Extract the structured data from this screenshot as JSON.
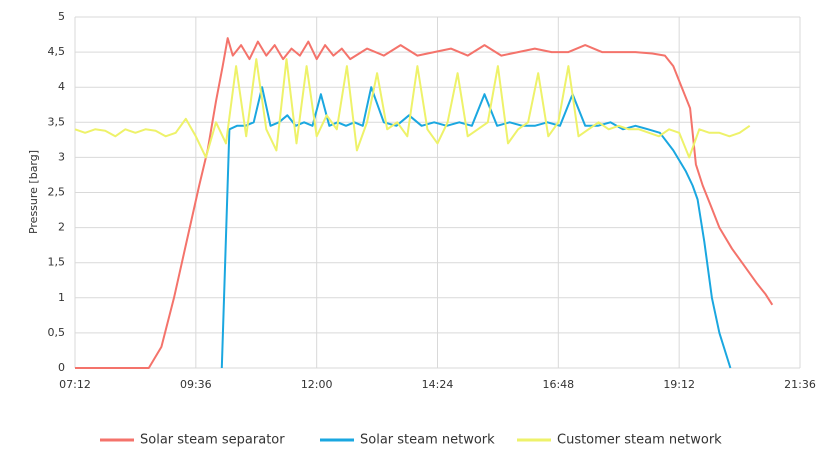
{
  "chart_data": {
    "type": "line",
    "y_label": "Pressure [barg]",
    "xlim": [
      432,
      1296
    ],
    "xticks": [
      {
        "value": 432,
        "label": "07:12"
      },
      {
        "value": 576,
        "label": "09:36"
      },
      {
        "value": 720,
        "label": "12:00"
      },
      {
        "value": 864,
        "label": "14:24"
      },
      {
        "value": 1008,
        "label": "16:48"
      },
      {
        "value": 1152,
        "label": "19:12"
      },
      {
        "value": 1296,
        "label": "21:36"
      }
    ],
    "ylim": [
      0,
      5
    ],
    "yticks": [
      0,
      {
        "value": 0.5,
        "label": "0,5"
      },
      1,
      {
        "value": 1.5,
        "label": "1,5"
      },
      2,
      {
        "value": 2.5,
        "label": "2,5"
      },
      3,
      {
        "value": 3.5,
        "label": "3,5"
      },
      4,
      {
        "value": 4.5,
        "label": "4,5"
      },
      5
    ],
    "grid": true,
    "legend": "bottom",
    "series": [
      {
        "name": "Solar steam separator",
        "color": "#f4736b",
        "x": [
          432,
          480,
          520,
          535,
          550,
          565,
          580,
          590,
          600,
          608,
          614,
          620,
          630,
          640,
          650,
          660,
          670,
          680,
          690,
          700,
          710,
          720,
          730,
          740,
          750,
          760,
          780,
          800,
          820,
          840,
          860,
          880,
          900,
          920,
          940,
          960,
          980,
          1000,
          1020,
          1040,
          1060,
          1080,
          1100,
          1120,
          1135,
          1145,
          1155,
          1165,
          1172,
          1180,
          1190,
          1200,
          1215,
          1230,
          1245,
          1255,
          1263
        ],
        "values": [
          0,
          0,
          0,
          0.3,
          1.0,
          1.8,
          2.6,
          3.1,
          3.8,
          4.3,
          4.7,
          4.45,
          4.6,
          4.4,
          4.65,
          4.45,
          4.6,
          4.4,
          4.55,
          4.45,
          4.65,
          4.4,
          4.6,
          4.45,
          4.55,
          4.4,
          4.55,
          4.45,
          4.6,
          4.45,
          4.5,
          4.55,
          4.45,
          4.6,
          4.45,
          4.5,
          4.55,
          4.5,
          4.5,
          4.6,
          4.5,
          4.5,
          4.5,
          4.48,
          4.45,
          4.3,
          4.0,
          3.7,
          2.9,
          2.6,
          2.3,
          2.0,
          1.7,
          1.45,
          1.2,
          1.05,
          0.9
        ]
      },
      {
        "name": "Solar steam network",
        "color": "#1aa7e0",
        "x": [
          607,
          616,
          625,
          635,
          645,
          655,
          665,
          675,
          685,
          695,
          705,
          715,
          725,
          735,
          745,
          755,
          765,
          775,
          785,
          800,
          815,
          830,
          845,
          860,
          875,
          890,
          905,
          920,
          935,
          950,
          965,
          980,
          995,
          1010,
          1025,
          1040,
          1055,
          1070,
          1085,
          1100,
          1115,
          1129,
          1145,
          1160,
          1168,
          1174,
          1182,
          1191,
          1200,
          1213
        ],
        "values": [
          0,
          3.4,
          3.45,
          3.45,
          3.5,
          4.0,
          3.45,
          3.5,
          3.6,
          3.45,
          3.5,
          3.45,
          3.9,
          3.45,
          3.5,
          3.45,
          3.5,
          3.45,
          4.0,
          3.5,
          3.45,
          3.6,
          3.45,
          3.5,
          3.45,
          3.5,
          3.45,
          3.9,
          3.45,
          3.5,
          3.45,
          3.45,
          3.5,
          3.45,
          3.9,
          3.45,
          3.45,
          3.5,
          3.4,
          3.45,
          3.4,
          3.35,
          3.1,
          2.8,
          2.6,
          2.4,
          1.8,
          1.0,
          0.5,
          0
        ]
      },
      {
        "name": "Customer steam network",
        "color": "#eef26a",
        "x": [
          432,
          444,
          456,
          468,
          480,
          492,
          504,
          516,
          528,
          540,
          552,
          564,
          576,
          588,
          600,
          612,
          624,
          636,
          648,
          660,
          672,
          684,
          696,
          708,
          720,
          732,
          744,
          756,
          768,
          780,
          792,
          804,
          816,
          828,
          840,
          852,
          864,
          876,
          888,
          900,
          912,
          924,
          936,
          948,
          960,
          972,
          984,
          996,
          1008,
          1020,
          1032,
          1044,
          1056,
          1068,
          1080,
          1092,
          1104,
          1116,
          1128,
          1140,
          1152,
          1164,
          1176,
          1188,
          1200,
          1212,
          1224,
          1236
        ],
        "values": [
          3.4,
          3.35,
          3.4,
          3.38,
          3.3,
          3.4,
          3.35,
          3.4,
          3.38,
          3.3,
          3.35,
          3.55,
          3.3,
          3.0,
          3.5,
          3.2,
          4.3,
          3.3,
          4.4,
          3.4,
          3.1,
          4.4,
          3.2,
          4.3,
          3.3,
          3.6,
          3.4,
          4.3,
          3.1,
          3.5,
          4.2,
          3.4,
          3.5,
          3.3,
          4.3,
          3.4,
          3.2,
          3.5,
          4.2,
          3.3,
          3.4,
          3.5,
          4.3,
          3.2,
          3.4,
          3.5,
          4.2,
          3.3,
          3.5,
          4.3,
          3.3,
          3.4,
          3.5,
          3.4,
          3.45,
          3.4,
          3.4,
          3.35,
          3.3,
          3.4,
          3.35,
          3.0,
          3.4,
          3.35,
          3.35,
          3.3,
          3.35,
          3.45
        ]
      }
    ]
  }
}
